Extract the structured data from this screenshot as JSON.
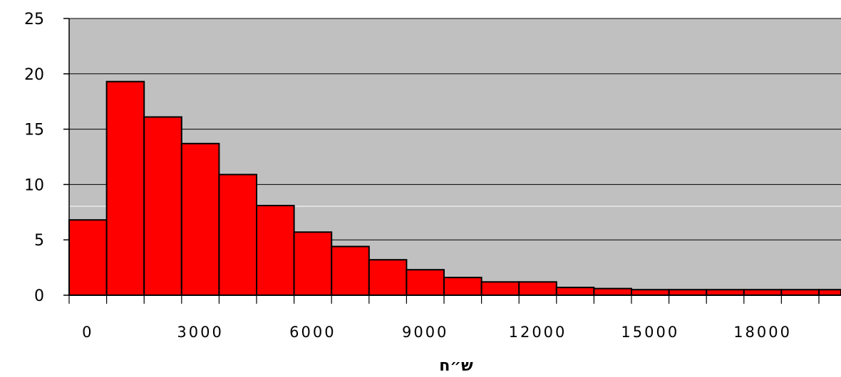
{
  "chart_data": {
    "type": "bar",
    "title": "",
    "xlabel": "ש״ח",
    "ylabel": "",
    "bin_width": 1000,
    "bin_starts": [
      0,
      1000,
      2000,
      3000,
      4000,
      5000,
      6000,
      7000,
      8000,
      9000,
      10000,
      11000,
      12000,
      13000,
      14000,
      15000,
      16000,
      17000,
      18000,
      19000,
      20000
    ],
    "values": [
      6.8,
      19.3,
      16.1,
      13.7,
      10.9,
      8.1,
      5.7,
      4.4,
      3.2,
      2.3,
      1.6,
      1.2,
      1.2,
      0.7,
      0.6,
      0.5,
      0.5,
      0.5,
      0.5,
      0.5,
      0.5
    ],
    "y_ticks": [
      "0",
      "5",
      "10",
      "15",
      "20",
      "25"
    ],
    "x_tick_labels": [
      "0",
      "3000",
      "6000",
      "9000",
      "12000",
      "15000",
      "18000"
    ],
    "ylim": [
      0,
      25
    ],
    "grid": true,
    "colors": {
      "bar_fill": "#ff0000",
      "bar_stroke": "#000000",
      "plot_background": "#c0c0c0",
      "gridline": "#000000"
    }
  }
}
